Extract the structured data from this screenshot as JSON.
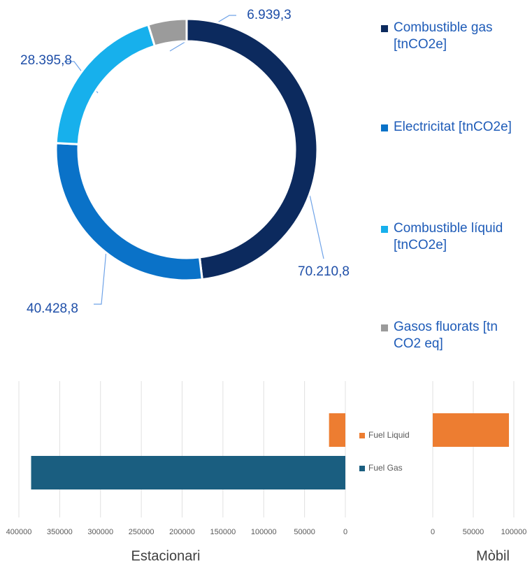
{
  "chart_data": [
    {
      "type": "donut",
      "series": [
        {
          "name": "Combustible gas [tnCO2e]",
          "color": "#0c2a5e"
        },
        {
          "name": "Electricitat [tnCO2e]",
          "color": "#0a72c8"
        },
        {
          "name": "Combustible líquid [tnCO2e]",
          "color": "#17b0ec"
        },
        {
          "name": "Gasos fluorats [tn CO2 eq]",
          "color": "#9b9b9b"
        }
      ],
      "values": [
        70210.8,
        40428.8,
        28395.8,
        6939.3
      ],
      "value_labels": [
        "70.210,8",
        "40.428,8",
        "28.395,8",
        "6.939,3"
      ],
      "legend": "right"
    },
    {
      "type": "bar",
      "orientation": "horizontal",
      "panels": [
        {
          "title": "Estacionari",
          "xlim": [
            400000,
            0
          ],
          "xticks": [
            400000,
            350000,
            300000,
            250000,
            200000,
            150000,
            100000,
            50000,
            0
          ]
        },
        {
          "title": "Mòbil",
          "xlim": [
            0,
            100000
          ],
          "xticks": [
            0,
            50000,
            100000
          ]
        }
      ],
      "series": [
        {
          "name": "Fuel Liquid",
          "color": "#ed7d31",
          "values": [
            20000,
            94000
          ]
        },
        {
          "name": "Fuel Gas",
          "color": "#1a5e80",
          "values": [
            385000,
            0
          ]
        }
      ],
      "grid": true
    }
  ]
}
